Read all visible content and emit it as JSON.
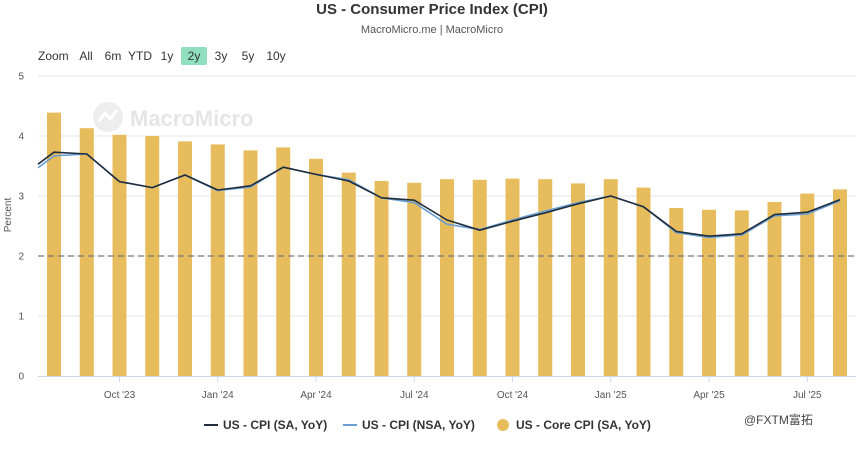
{
  "chart_data": {
    "type": "bar+line",
    "title": "US - Consumer Price Index (CPI)",
    "subtitle": "MacroMicro.me | MacroMicro",
    "ylabel": "Percent",
    "ylim": [
      0,
      5
    ],
    "yticks": [
      0,
      1,
      2,
      3,
      4,
      5
    ],
    "reference_line": 2,
    "x": [
      "2023-08",
      "2023-09",
      "2023-10",
      "2023-11",
      "2023-12",
      "2024-01",
      "2024-02",
      "2024-03",
      "2024-04",
      "2024-05",
      "2024-06",
      "2024-07",
      "2024-08",
      "2024-09",
      "2024-10",
      "2024-11",
      "2024-12",
      "2025-01",
      "2025-02",
      "2025-03",
      "2025-04",
      "2025-05",
      "2025-06",
      "2025-07",
      "2025-08"
    ],
    "xticks": [
      {
        "date": "2023-10",
        "label": "Oct '23"
      },
      {
        "date": "2024-01",
        "label": "Jan '24"
      },
      {
        "date": "2024-04",
        "label": "Apr '24"
      },
      {
        "date": "2024-07",
        "label": "Jul '24"
      },
      {
        "date": "2024-10",
        "label": "Oct '24"
      },
      {
        "date": "2025-01",
        "label": "Jan '25"
      },
      {
        "date": "2025-04",
        "label": "Apr '25"
      },
      {
        "date": "2025-07",
        "label": "Jul '25"
      }
    ],
    "series": [
      {
        "name": "US - CPI (SA, YoY)",
        "type": "line",
        "color": "#1f2d3d",
        "values": [
          3.73,
          3.7,
          3.24,
          3.14,
          3.35,
          3.1,
          3.17,
          3.48,
          3.36,
          3.25,
          2.97,
          2.93,
          2.6,
          2.43,
          2.58,
          2.72,
          2.87,
          3.0,
          2.82,
          2.41,
          2.33,
          2.37,
          2.69,
          2.73,
          2.94
        ]
      },
      {
        "name": "US - CPI (NSA, YoY)",
        "type": "line",
        "color": "#6a9fd4",
        "values": [
          3.67,
          3.7,
          3.24,
          3.14,
          3.35,
          3.09,
          3.15,
          3.48,
          3.36,
          3.27,
          2.97,
          2.89,
          2.53,
          2.44,
          2.6,
          2.75,
          2.89,
          3.0,
          2.82,
          2.39,
          2.31,
          2.35,
          2.67,
          2.7,
          2.92
        ]
      },
      {
        "name": "US - Core CPI (SA, YoY)",
        "type": "bar",
        "color": "#e6bc5c",
        "values": [
          4.39,
          4.13,
          4.02,
          4.0,
          3.91,
          3.86,
          3.76,
          3.81,
          3.62,
          3.39,
          3.25,
          3.22,
          3.28,
          3.27,
          3.29,
          3.28,
          3.21,
          3.28,
          3.14,
          2.8,
          2.77,
          2.76,
          2.9,
          3.04,
          3.11
        ]
      }
    ],
    "lead_in": {
      "line_sa": 3.53,
      "line_nsa": 3.47
    },
    "grid": true,
    "legend_position": "bottom"
  },
  "zoom": {
    "label": "Zoom",
    "buttons": [
      "All",
      "6m",
      "YTD",
      "1y",
      "2y",
      "3y",
      "5y",
      "10y"
    ],
    "selected": "2y"
  },
  "watermark": "MacroMicro",
  "corner_mark": "@FXTM富拓",
  "colors": {
    "accent": "#90e0c0",
    "grid": "#e6e6e6",
    "reference": "#777777"
  }
}
